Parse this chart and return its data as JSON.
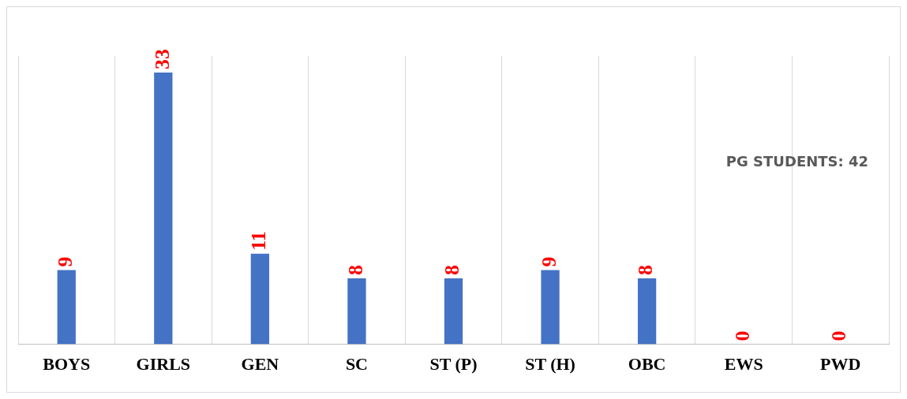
{
  "chart_data": {
    "type": "bar",
    "categories": [
      "BOYS",
      "GIRLS",
      "GEN",
      "SC",
      "ST (P)",
      "ST (H)",
      "OBC",
      "EWS",
      "PWD"
    ],
    "values": [
      9,
      33,
      11,
      8,
      8,
      9,
      8,
      0,
      0
    ],
    "color": "#4472c4",
    "ylim": [
      0,
      35
    ],
    "tick_labels": "x",
    "grid": "x",
    "legend": false,
    "data_labels": true,
    "annotations": [
      "PG STUDENTS: 42"
    ]
  }
}
